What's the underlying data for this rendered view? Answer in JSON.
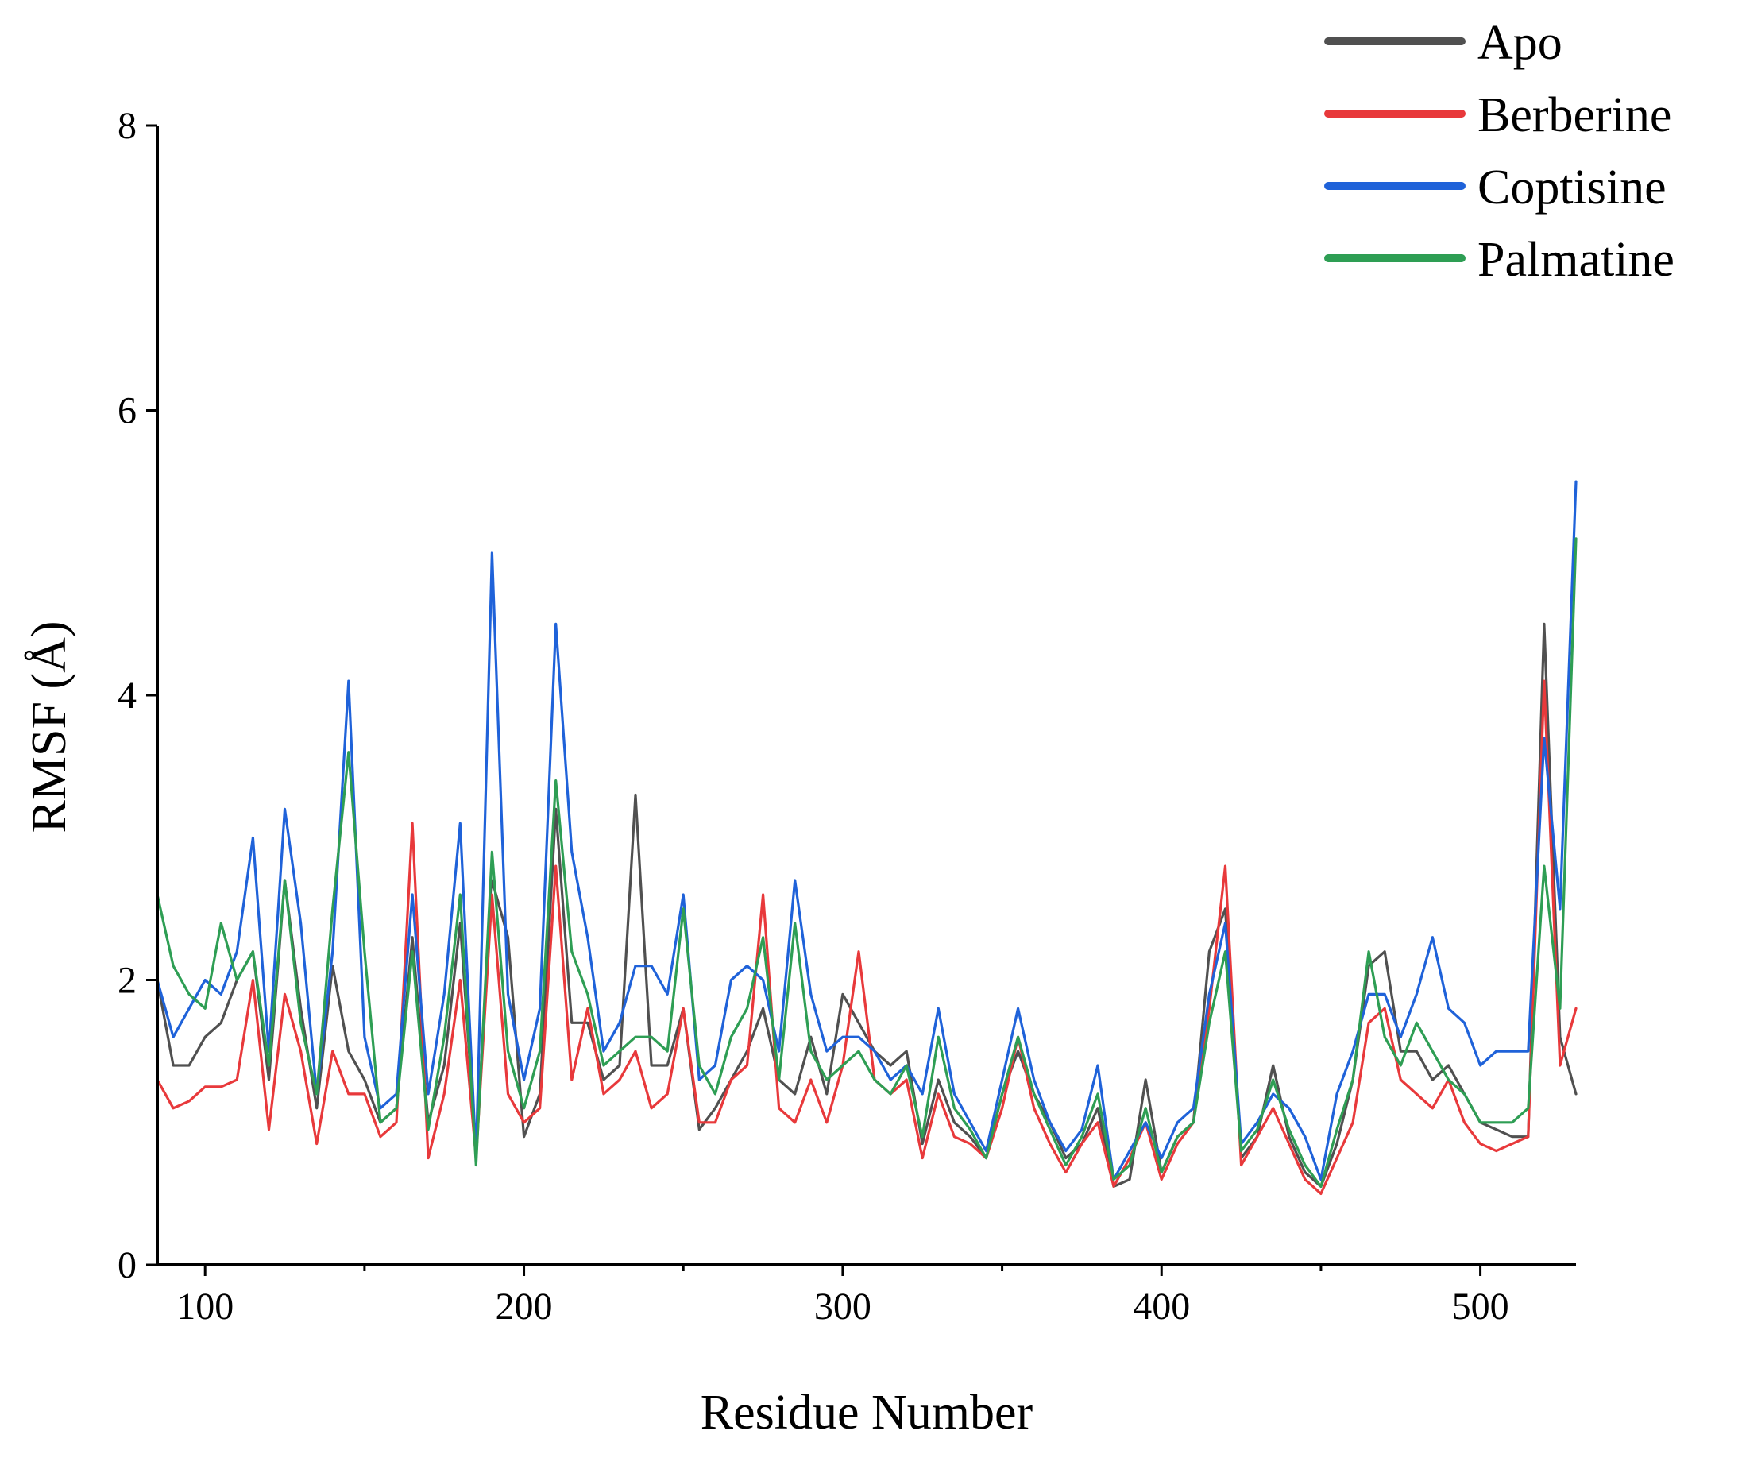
{
  "chart_data": {
    "type": "line",
    "title": "",
    "xlabel": "Residue Number",
    "ylabel": "RMSF (Å)",
    "xlim": [
      85,
      530
    ],
    "ylim": [
      0,
      8
    ],
    "x_ticks": [
      "100",
      "200",
      "300",
      "400",
      "500"
    ],
    "y_ticks": [
      "0",
      "2",
      "4",
      "6",
      "8"
    ],
    "legend_position": "top-right",
    "x": [
      85,
      90,
      95,
      100,
      105,
      110,
      115,
      120,
      125,
      130,
      135,
      140,
      145,
      150,
      155,
      160,
      165,
      170,
      175,
      180,
      185,
      190,
      195,
      200,
      205,
      210,
      215,
      220,
      225,
      230,
      235,
      240,
      245,
      250,
      255,
      260,
      265,
      270,
      275,
      280,
      285,
      290,
      295,
      300,
      305,
      310,
      315,
      320,
      325,
      330,
      335,
      340,
      345,
      350,
      355,
      360,
      365,
      370,
      375,
      380,
      385,
      390,
      395,
      400,
      405,
      410,
      415,
      420,
      425,
      430,
      435,
      440,
      445,
      450,
      455,
      460,
      465,
      470,
      475,
      480,
      485,
      490,
      495,
      500,
      505,
      510,
      515,
      520,
      525,
      530
    ],
    "series": [
      {
        "name": "Apo",
        "color": "#505050",
        "values": [
          2.0,
          1.4,
          1.4,
          1.6,
          1.7,
          2.0,
          2.2,
          1.3,
          2.7,
          1.8,
          1.1,
          2.1,
          1.5,
          1.3,
          1.0,
          1.1,
          2.3,
          1.0,
          1.4,
          2.4,
          0.8,
          2.7,
          2.3,
          0.9,
          1.2,
          3.2,
          1.7,
          1.7,
          1.3,
          1.4,
          3.3,
          1.4,
          1.4,
          1.8,
          0.95,
          1.1,
          1.3,
          1.5,
          1.8,
          1.3,
          1.2,
          1.6,
          1.2,
          1.9,
          1.7,
          1.5,
          1.4,
          1.5,
          0.85,
          1.3,
          1.0,
          0.9,
          0.75,
          1.2,
          1.5,
          1.2,
          1.0,
          0.75,
          0.85,
          1.1,
          0.55,
          0.6,
          1.3,
          0.65,
          0.9,
          1.0,
          2.2,
          2.5,
          0.75,
          0.9,
          1.4,
          0.9,
          0.65,
          0.55,
          0.85,
          1.3,
          2.1,
          2.2,
          1.5,
          1.5,
          1.3,
          1.4,
          1.2,
          1.0,
          0.95,
          0.9,
          0.9,
          4.5,
          1.6,
          1.2
        ]
      },
      {
        "name": "Berberine",
        "color": "#e8393b",
        "values": [
          1.3,
          1.1,
          1.15,
          1.25,
          1.25,
          1.3,
          2.0,
          0.95,
          1.9,
          1.5,
          0.85,
          1.5,
          1.2,
          1.2,
          0.9,
          1.0,
          3.1,
          0.75,
          1.2,
          2.0,
          0.75,
          2.6,
          1.2,
          1.0,
          1.1,
          2.8,
          1.3,
          1.8,
          1.2,
          1.3,
          1.5,
          1.1,
          1.2,
          1.8,
          1.0,
          1.0,
          1.3,
          1.4,
          2.6,
          1.1,
          1.0,
          1.3,
          1.0,
          1.4,
          2.2,
          1.3,
          1.2,
          1.3,
          0.75,
          1.2,
          0.9,
          0.85,
          0.75,
          1.1,
          1.6,
          1.1,
          0.85,
          0.65,
          0.85,
          1.0,
          0.55,
          0.75,
          1.0,
          0.6,
          0.85,
          1.0,
          1.8,
          2.8,
          0.7,
          0.9,
          1.1,
          0.85,
          0.6,
          0.5,
          0.75,
          1.0,
          1.7,
          1.8,
          1.3,
          1.2,
          1.1,
          1.3,
          1.0,
          0.85,
          0.8,
          0.85,
          0.9,
          4.1,
          1.4,
          1.8
        ]
      },
      {
        "name": "Coptisine",
        "color": "#1f62d9",
        "values": [
          2.0,
          1.6,
          1.8,
          2.0,
          1.9,
          2.2,
          3.0,
          1.5,
          3.2,
          2.4,
          1.2,
          2.2,
          4.1,
          1.6,
          1.1,
          1.2,
          2.6,
          1.2,
          1.9,
          3.1,
          0.75,
          5.0,
          1.9,
          1.3,
          1.8,
          4.5,
          2.9,
          2.3,
          1.5,
          1.7,
          2.1,
          2.1,
          1.9,
          2.6,
          1.3,
          1.4,
          2.0,
          2.1,
          2.0,
          1.5,
          2.7,
          1.9,
          1.5,
          1.6,
          1.6,
          1.5,
          1.3,
          1.4,
          1.2,
          1.8,
          1.2,
          1.0,
          0.8,
          1.3,
          1.8,
          1.3,
          1.0,
          0.8,
          0.95,
          1.4,
          0.6,
          0.8,
          1.0,
          0.75,
          1.0,
          1.1,
          1.9,
          2.4,
          0.85,
          1.0,
          1.2,
          1.1,
          0.9,
          0.6,
          1.2,
          1.5,
          1.9,
          1.9,
          1.6,
          1.9,
          2.3,
          1.8,
          1.7,
          1.4,
          1.5,
          1.5,
          1.5,
          3.7,
          2.5,
          5.5
        ]
      },
      {
        "name": "Palmatine",
        "color": "#2e9e54",
        "values": [
          2.6,
          2.1,
          1.9,
          1.8,
          2.4,
          2.0,
          2.2,
          1.4,
          2.7,
          1.7,
          1.2,
          2.5,
          3.6,
          2.2,
          1.0,
          1.1,
          2.2,
          0.95,
          1.6,
          2.6,
          0.7,
          2.9,
          1.5,
          1.1,
          1.5,
          3.4,
          2.2,
          1.9,
          1.4,
          1.5,
          1.6,
          1.6,
          1.5,
          2.5,
          1.4,
          1.2,
          1.6,
          1.8,
          2.3,
          1.3,
          2.4,
          1.5,
          1.3,
          1.4,
          1.5,
          1.3,
          1.2,
          1.4,
          0.9,
          1.6,
          1.1,
          0.95,
          0.75,
          1.2,
          1.6,
          1.2,
          0.95,
          0.7,
          0.9,
          1.2,
          0.6,
          0.7,
          1.1,
          0.65,
          0.9,
          1.0,
          1.7,
          2.2,
          0.8,
          0.95,
          1.3,
          0.95,
          0.7,
          0.55,
          0.95,
          1.3,
          2.2,
          1.6,
          1.4,
          1.7,
          1.5,
          1.3,
          1.2,
          1.0,
          1.0,
          1.0,
          1.1,
          2.8,
          1.8,
          5.1
        ]
      }
    ]
  }
}
